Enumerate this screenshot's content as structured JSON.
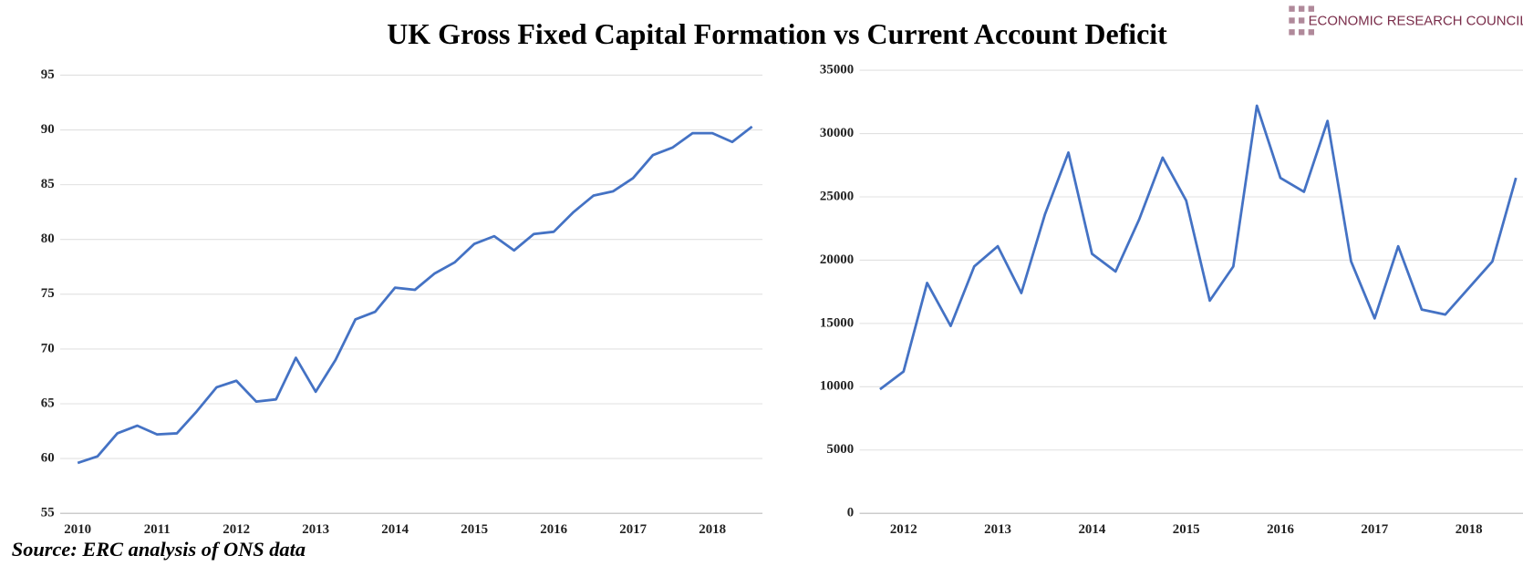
{
  "title": "UK Gross Fixed Capital Formation vs Current Account Deficit",
  "source": "Source: ERC analysis of ONS data",
  "logo": "ECONOMIC RESEARCH COUNCIL",
  "chart_data": [
    {
      "type": "line",
      "color": "#4472c4",
      "grid": true,
      "categories": [
        "2010",
        null,
        null,
        null,
        "2011",
        null,
        null,
        null,
        "2012",
        null,
        null,
        null,
        "2013",
        null,
        null,
        null,
        "2014",
        null,
        null,
        null,
        "2015",
        null,
        null,
        null,
        "2016",
        null,
        null,
        null,
        "2017",
        null,
        null,
        null,
        "2018",
        null,
        null
      ],
      "values": [
        59.6,
        60.2,
        62.3,
        63.0,
        62.2,
        62.3,
        64.3,
        66.5,
        67.1,
        65.2,
        65.4,
        69.2,
        66.1,
        69.0,
        72.7,
        73.4,
        75.6,
        75.4,
        76.9,
        77.9,
        79.6,
        80.3,
        79.0,
        80.5,
        80.7,
        82.5,
        84.0,
        84.4,
        85.6,
        87.7,
        88.4,
        89.7,
        89.7,
        88.9,
        90.3
      ],
      "ylim": [
        55,
        95
      ],
      "yticks": [
        55,
        60,
        65,
        70,
        75,
        80,
        85,
        90,
        95
      ]
    },
    {
      "type": "line",
      "color": "#4472c4",
      "grid": true,
      "categories": [
        null,
        "2012",
        null,
        null,
        null,
        "2013",
        null,
        null,
        null,
        "2014",
        null,
        null,
        null,
        "2015",
        null,
        null,
        null,
        "2016",
        null,
        null,
        null,
        "2017",
        null,
        null,
        null,
        "2018",
        null,
        null
      ],
      "values": [
        9800,
        11200,
        18200,
        14800,
        19500,
        21100,
        17400,
        23600,
        28500,
        20500,
        19100,
        23200,
        28100,
        24700,
        16800,
        19500,
        32200,
        26500,
        25400,
        31000,
        19900,
        15400,
        21100,
        16100,
        15700,
        17800,
        19900,
        26500
      ],
      "ylim": [
        0,
        35000
      ],
      "yticks": [
        0,
        5000,
        10000,
        15000,
        20000,
        25000,
        30000,
        35000
      ]
    }
  ]
}
